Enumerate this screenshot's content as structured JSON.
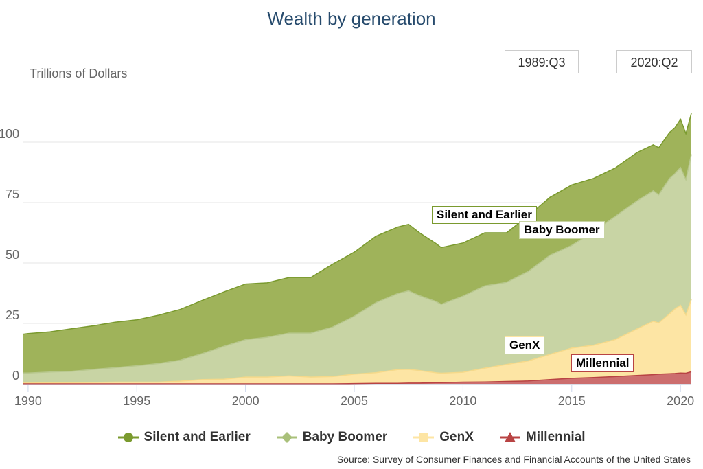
{
  "title": "Wealth by generation",
  "y_axis_label": "Trillions of Dollars",
  "range": {
    "start": "1989:Q3",
    "end": "2020:Q2"
  },
  "source": "Source: Survey of Consumer Finances and Financial Accounts of the United States",
  "colors": {
    "silent": "#9fb35a",
    "silent_line": "#7a9a2e",
    "boomer": "#c8d4a4",
    "genx": "#fde5a4",
    "millennial": "#cc6e6e",
    "millennial_line": "#b84343"
  },
  "annotations": [
    {
      "label": "Silent and Earlier",
      "border": "#7a9a2e"
    },
    {
      "label": "Baby Boomer",
      "border": "#c8d4a4"
    },
    {
      "label": "GenX",
      "border": "#fde5a4"
    },
    {
      "label": "Millennial",
      "border": "#b84343"
    }
  ],
  "legend": [
    {
      "label": "Silent and Earlier",
      "symbol": "circle",
      "color": "#7a9a2e"
    },
    {
      "label": "Baby Boomer",
      "symbol": "diamond",
      "color": "#a9c07a"
    },
    {
      "label": "GenX",
      "symbol": "square",
      "color": "#fde5a4"
    },
    {
      "label": "Millennial",
      "symbol": "triangle",
      "color": "#b84343"
    }
  ],
  "chart_data": {
    "type": "area",
    "stacked": true,
    "title": "Wealth by generation",
    "xlabel": "",
    "ylabel": "Trillions of Dollars",
    "x_range": [
      1989.75,
      2020.5
    ],
    "ylim": [
      0,
      112
    ],
    "y_ticks": [
      0,
      25,
      50,
      75,
      100
    ],
    "x_ticks": [
      1990,
      1995,
      2000,
      2005,
      2010,
      2015,
      2020
    ],
    "grid": true,
    "legend_position": "bottom",
    "x": [
      1989.75,
      1990,
      1991,
      1992,
      1993,
      1994,
      1995,
      1996,
      1997,
      1998,
      1999,
      2000,
      2001,
      2002,
      2003,
      2004,
      2005,
      2006,
      2007,
      2007.5,
      2008,
      2008.75,
      2009,
      2010,
      2011,
      2012,
      2013,
      2014,
      2015,
      2016,
      2017,
      2018,
      2018.75,
      2019,
      2019.5,
      2019.75,
      2020,
      2020.25,
      2020.5
    ],
    "series": [
      {
        "name": "Millennial",
        "values": [
          0,
          0,
          0,
          0,
          0,
          0,
          0,
          0,
          0,
          0,
          0,
          0,
          0,
          0,
          0,
          0,
          0.1,
          0.2,
          0.2,
          0.3,
          0.3,
          0.5,
          0.5,
          0.7,
          0.8,
          1.0,
          1.2,
          1.8,
          2.3,
          2.6,
          3.0,
          3.5,
          3.8,
          4.0,
          4.2,
          4.3,
          4.5,
          4.4,
          5.0
        ]
      },
      {
        "name": "GenX",
        "values": [
          0.3,
          0.3,
          0.4,
          0.5,
          0.6,
          0.7,
          0.7,
          0.7,
          1.1,
          1.8,
          1.9,
          2.8,
          2.8,
          3.3,
          2.8,
          3.0,
          3.9,
          4.4,
          5.7,
          5.7,
          5.2,
          4.1,
          3.9,
          4.1,
          5.7,
          7.0,
          8.3,
          10.4,
          12.5,
          13.4,
          15.3,
          19.2,
          22.1,
          21.2,
          24.8,
          26.7,
          28.0,
          24.1,
          30.0
        ]
      },
      {
        "name": "Baby Boomer",
        "values": [
          4.2,
          4.2,
          4.5,
          4.7,
          5.4,
          6.0,
          6.8,
          7.7,
          8.7,
          10.7,
          13.6,
          15.5,
          16.5,
          17.7,
          18.2,
          20.5,
          24.0,
          29.0,
          31.5,
          32.5,
          31.0,
          29.5,
          28.5,
          31.5,
          34.0,
          34.0,
          37.0,
          41.0,
          42.5,
          47.0,
          51.0,
          53.0,
          54.0,
          53.0,
          56.0,
          56.0,
          57.0,
          56.0,
          60.0
        ]
      },
      {
        "name": "Silent and Earlier",
        "values": [
          16.0,
          16.3,
          16.6,
          17.6,
          18.0,
          18.8,
          19.0,
          20.0,
          21.0,
          22.0,
          22.5,
          23.0,
          22.5,
          23.0,
          23.0,
          26.0,
          26.5,
          27.5,
          27.5,
          27.5,
          26.0,
          24.0,
          23.5,
          22.0,
          22.0,
          20.5,
          23.0,
          24.0,
          25.0,
          22.0,
          20.0,
          20.0,
          19.0,
          19.5,
          19.0,
          19.0,
          20.0,
          19.0,
          17.0
        ]
      }
    ]
  }
}
